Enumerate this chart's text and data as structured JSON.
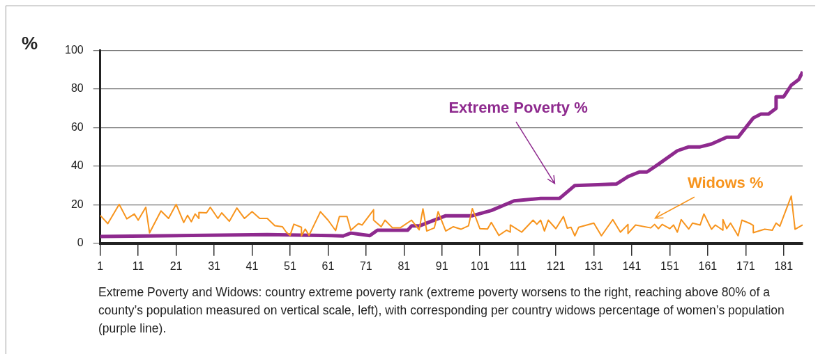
{
  "chart_data": {
    "type": "line",
    "ylabel": "%",
    "xlim": [
      1,
      186
    ],
    "xticks": [
      1,
      11,
      21,
      31,
      41,
      51,
      61,
      71,
      81,
      91,
      101,
      111,
      121,
      131,
      141,
      151,
      161,
      171,
      181
    ],
    "ylim": [
      0,
      100
    ],
    "yticks": [
      0,
      20,
      40,
      60,
      80,
      100
    ],
    "grid": "y",
    "marker": "none",
    "series": [
      {
        "name": "Widows %",
        "color": "#f7941d",
        "x": [
          1,
          3,
          6,
          8,
          10,
          11,
          13,
          14,
          17,
          19,
          21,
          23,
          24,
          25,
          26,
          27,
          27,
          29,
          30,
          32,
          33,
          35,
          37,
          39,
          41,
          43,
          45,
          47,
          49,
          50,
          51,
          52,
          54,
          54,
          55,
          56,
          59,
          61,
          63,
          64,
          66,
          67,
          69,
          70,
          73,
          73,
          75,
          76,
          78,
          80,
          83,
          85,
          86,
          87,
          89,
          90,
          92,
          94,
          96,
          98,
          99,
          101,
          103,
          104,
          106,
          108,
          109,
          109,
          112,
          115,
          116,
          117,
          118,
          119,
          121,
          123,
          124,
          125,
          126,
          127,
          131,
          133,
          136,
          138,
          140,
          140,
          142,
          146,
          147,
          148,
          149,
          151,
          152,
          153,
          154,
          156,
          157,
          159,
          160,
          162,
          163,
          165,
          165,
          166,
          167,
          169,
          170,
          172,
          173,
          173,
          176,
          178,
          179,
          180,
          183,
          184,
          186
        ],
        "values": [
          14.5,
          10.2,
          20.2,
          12.7,
          15.2,
          12,
          18.7,
          5.4,
          16.8,
          12.9,
          20.2,
          10.8,
          14.5,
          11.2,
          15.2,
          12.9,
          16,
          15.8,
          18.7,
          12.9,
          15.8,
          11.4,
          18.3,
          12.9,
          16.4,
          12.9,
          12.9,
          9.1,
          8.6,
          5.8,
          4.1,
          9.9,
          8.3,
          3.9,
          7.4,
          4.1,
          16.4,
          12,
          6.6,
          13.9,
          13.9,
          6.8,
          10.2,
          9.5,
          17.4,
          12,
          8.6,
          12,
          8,
          8,
          12,
          7,
          17.9,
          6.4,
          8,
          16.4,
          6.4,
          8.6,
          7.3,
          9.1,
          18,
          7.6,
          7.4,
          10.8,
          4.1,
          6.8,
          5.8,
          9.5,
          5.8,
          12,
          9.9,
          12,
          6.4,
          12,
          7.6,
          13.9,
          7.9,
          8.3,
          3.9,
          8.3,
          10.5,
          3.9,
          12.3,
          5.8,
          9.8,
          5.1,
          9.5,
          8,
          9.8,
          7.6,
          9.8,
          7.6,
          9.5,
          5.8,
          12.3,
          7.4,
          10.5,
          9.5,
          15.2,
          7.3,
          9.5,
          6.8,
          12.3,
          7.6,
          10.5,
          3.9,
          12,
          10.4,
          9.3,
          5.5,
          7.3,
          6.8,
          10.5,
          8.9,
          24.5,
          7.3,
          9.5
        ]
      },
      {
        "name": "Extreme Poverty %",
        "color": "#8e2a8e",
        "x": [
          1,
          45,
          62,
          65,
          67,
          72,
          74,
          82,
          83,
          85,
          92,
          99,
          104,
          110,
          117,
          122,
          126,
          137,
          140,
          143,
          145,
          148,
          153,
          156,
          159,
          162,
          166,
          169,
          173,
          175,
          177,
          179,
          179,
          181,
          183,
          185,
          186
        ],
        "values": [
          3.5,
          4.5,
          4,
          3.8,
          5.3,
          4,
          6.8,
          6.8,
          9,
          9,
          14.3,
          14.3,
          17,
          22,
          23.3,
          23.3,
          30,
          30.8,
          34.6,
          37,
          37,
          41,
          48,
          50,
          50,
          51.5,
          55,
          55,
          65,
          67,
          67,
          70,
          76,
          76,
          82,
          85,
          89
        ]
      }
    ],
    "annotations": [
      "Extreme Poverty and Widows: country extreme poverty rank (extreme poverty worsens to the right, reaching above 80% of a county’s population measured on vertical scale, left), with corresponding per country widows percentage of women’s population (purple line)."
    ]
  }
}
